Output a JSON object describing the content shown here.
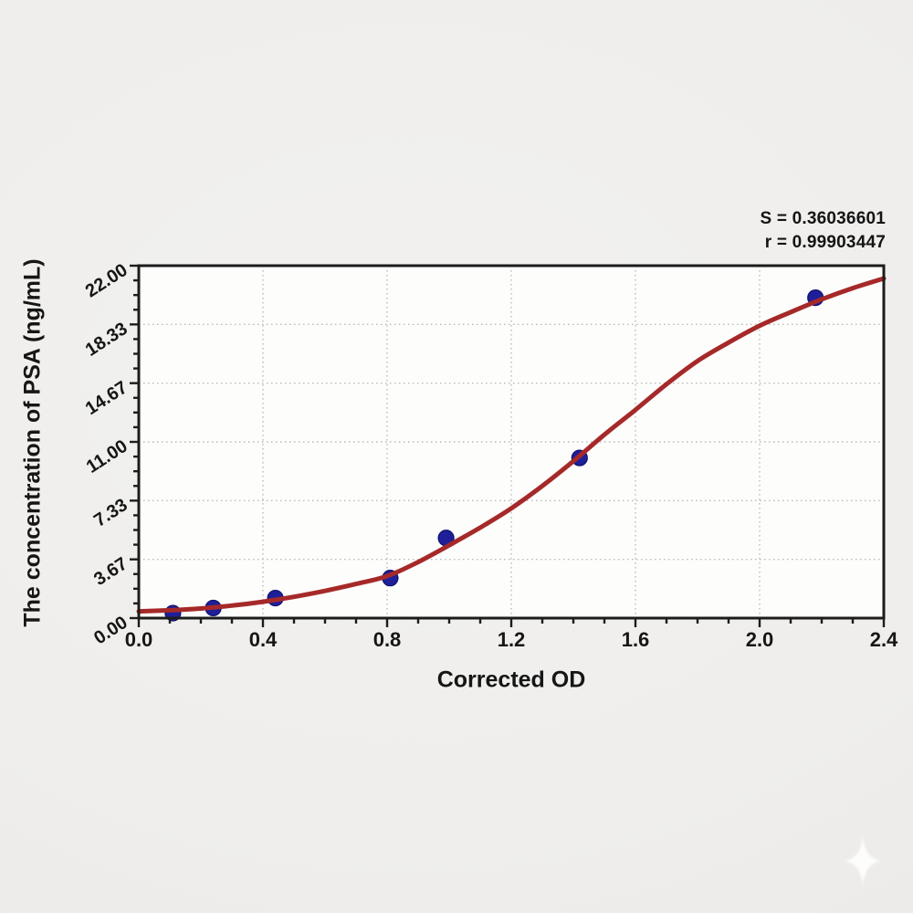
{
  "chart_data": {
    "type": "scatter",
    "title": "",
    "xlabel": "Corrected OD",
    "ylabel": "The concentration of PSA (ng/mL)",
    "xlim": [
      0.0,
      2.4
    ],
    "ylim": [
      0.0,
      22.0
    ],
    "x_major_ticks": [
      0.0,
      0.4,
      0.8,
      1.2,
      1.6,
      2.0,
      2.4
    ],
    "x_tick_labels": [
      "0.0",
      "0.4",
      "0.8",
      "1.2",
      "1.6",
      "2.0",
      "2.4"
    ],
    "x_minor_step": 0.1,
    "y_major_ticks": [
      0.0,
      3.6667,
      7.3333,
      11.0,
      14.6667,
      18.3333,
      22.0
    ],
    "y_tick_labels": [
      "0.00",
      "3.67",
      "7.33",
      "11.00",
      "14.67",
      "18.33",
      "22.00"
    ],
    "y_minor_divisions": 4,
    "grid": true,
    "legend_position": "none",
    "annotation": {
      "s_line": "S = 0.36036601",
      "r_line": "r = 0.99903447"
    },
    "series": [
      {
        "name": "standard-points",
        "type": "scatter",
        "color": "#1f1f99",
        "edge_color": "#10106e",
        "points": [
          {
            "x": 0.11,
            "y": 0.31
          },
          {
            "x": 0.24,
            "y": 0.63
          },
          {
            "x": 0.44,
            "y": 1.25
          },
          {
            "x": 0.81,
            "y": 2.5
          },
          {
            "x": 0.99,
            "y": 5.0
          },
          {
            "x": 1.42,
            "y": 10.0
          },
          {
            "x": 2.18,
            "y": 20.0
          }
        ]
      },
      {
        "name": "4PL-fit-curve",
        "type": "line",
        "color": "#a62929",
        "points": [
          {
            "x": 0.0,
            "y": 0.42
          },
          {
            "x": 0.1,
            "y": 0.49
          },
          {
            "x": 0.2,
            "y": 0.6
          },
          {
            "x": 0.3,
            "y": 0.78
          },
          {
            "x": 0.4,
            "y": 1.02
          },
          {
            "x": 0.5,
            "y": 1.33
          },
          {
            "x": 0.6,
            "y": 1.7
          },
          {
            "x": 0.7,
            "y": 2.13
          },
          {
            "x": 0.8,
            "y": 2.62
          },
          {
            "x": 0.9,
            "y": 3.5
          },
          {
            "x": 1.0,
            "y": 4.55
          },
          {
            "x": 1.1,
            "y": 5.65
          },
          {
            "x": 1.2,
            "y": 6.85
          },
          {
            "x": 1.3,
            "y": 8.25
          },
          {
            "x": 1.4,
            "y": 9.8
          },
          {
            "x": 1.5,
            "y": 11.45
          },
          {
            "x": 1.6,
            "y": 13.0
          },
          {
            "x": 1.7,
            "y": 14.6
          },
          {
            "x": 1.8,
            "y": 16.05
          },
          {
            "x": 1.9,
            "y": 17.2
          },
          {
            "x": 2.0,
            "y": 18.25
          },
          {
            "x": 2.1,
            "y": 19.1
          },
          {
            "x": 2.2,
            "y": 19.9
          },
          {
            "x": 2.3,
            "y": 20.6
          },
          {
            "x": 2.4,
            "y": 21.2
          }
        ]
      }
    ],
    "colors": {
      "background": "#efeeec",
      "plot_background": "#fdfdfc",
      "frame": "#1c1c1c",
      "grid": "#b9b9b9",
      "tick_text": "#161616"
    }
  },
  "watermark": {
    "icon": "four-point-star",
    "color": "#ffffff"
  }
}
